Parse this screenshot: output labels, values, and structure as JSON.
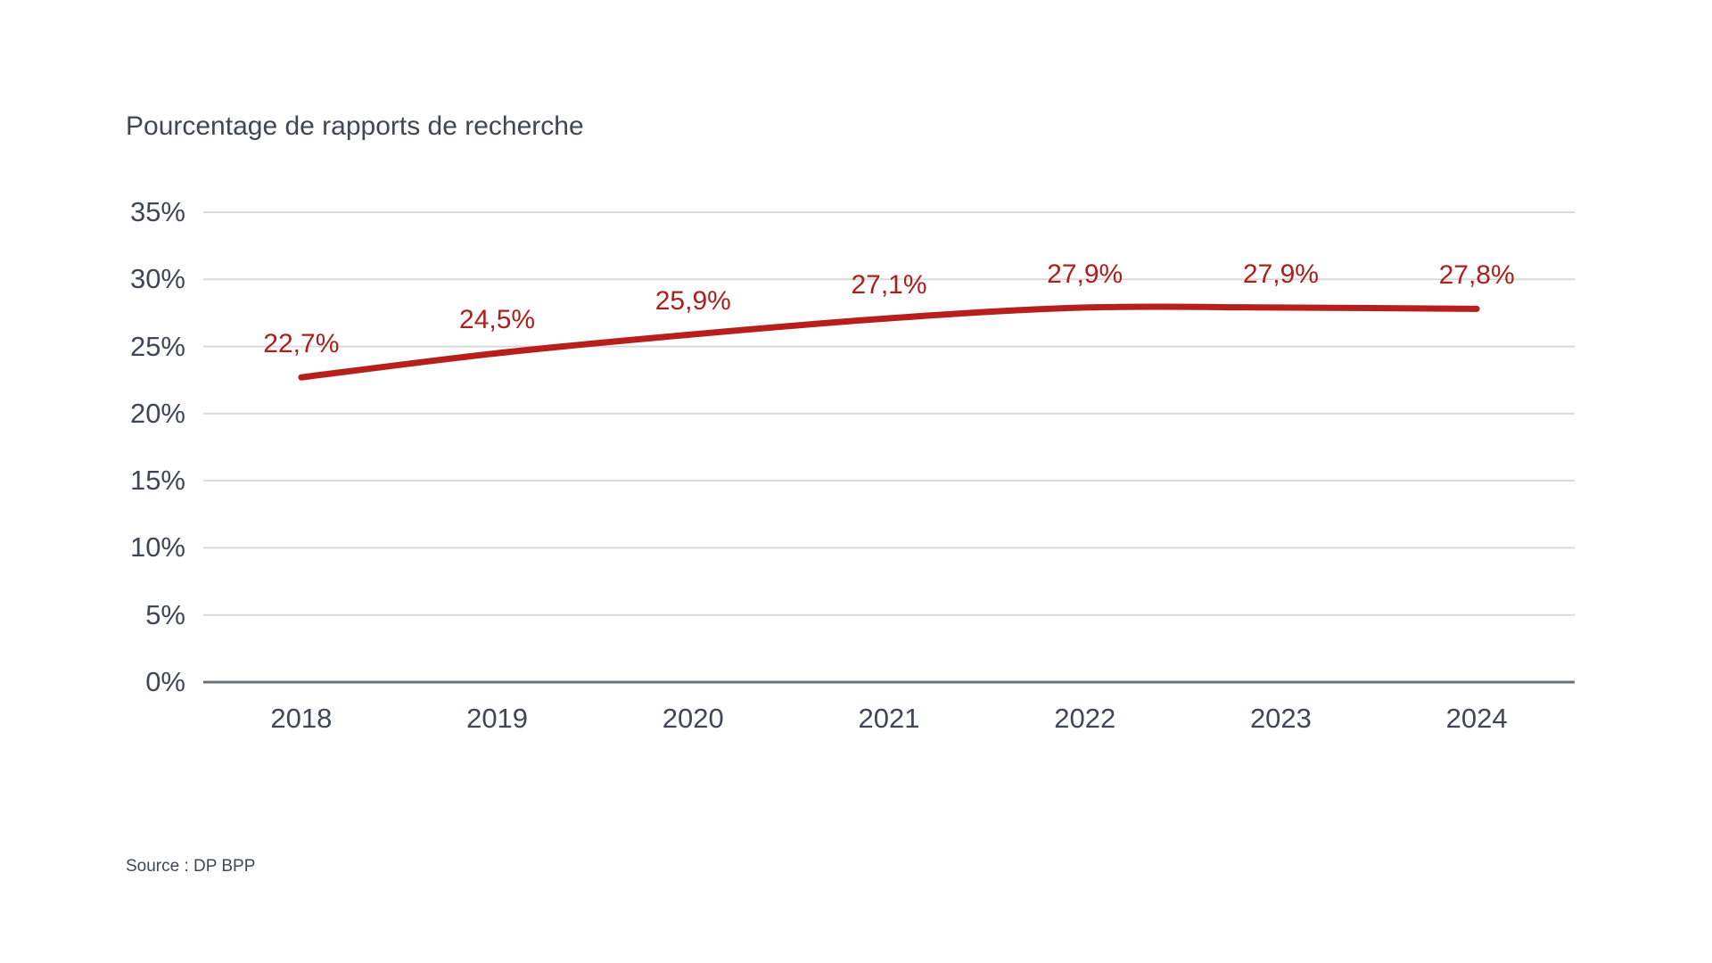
{
  "chart_data": {
    "type": "line",
    "title": "Pourcentage de rapports de recherche",
    "categories": [
      "2018",
      "2019",
      "2020",
      "2021",
      "2022",
      "2023",
      "2024"
    ],
    "values": [
      22.7,
      24.5,
      25.9,
      27.1,
      27.9,
      27.9,
      27.8
    ],
    "point_labels": [
      "22,7%",
      "24,5%",
      "25,9%",
      "27,1%",
      "27,9%",
      "27,9%",
      "27,8%"
    ],
    "y_ticks": [
      0,
      5,
      10,
      15,
      20,
      25,
      30,
      35
    ],
    "y_tick_labels": [
      "0%",
      "5%",
      "10%",
      "15%",
      "20%",
      "25%",
      "30%",
      "35%"
    ],
    "ylim": [
      0,
      35
    ],
    "xlabel": "",
    "ylabel": "",
    "grid": "horizontal-only",
    "legend": "none",
    "colors": {
      "line": "#b71f1f",
      "data_label": "#ab201c",
      "axis_text": "#3f4754",
      "gridline": "#d9d9d9",
      "axis_line": "#6b7076",
      "background": "#ffffff"
    }
  },
  "source": "Source : DP BPP"
}
